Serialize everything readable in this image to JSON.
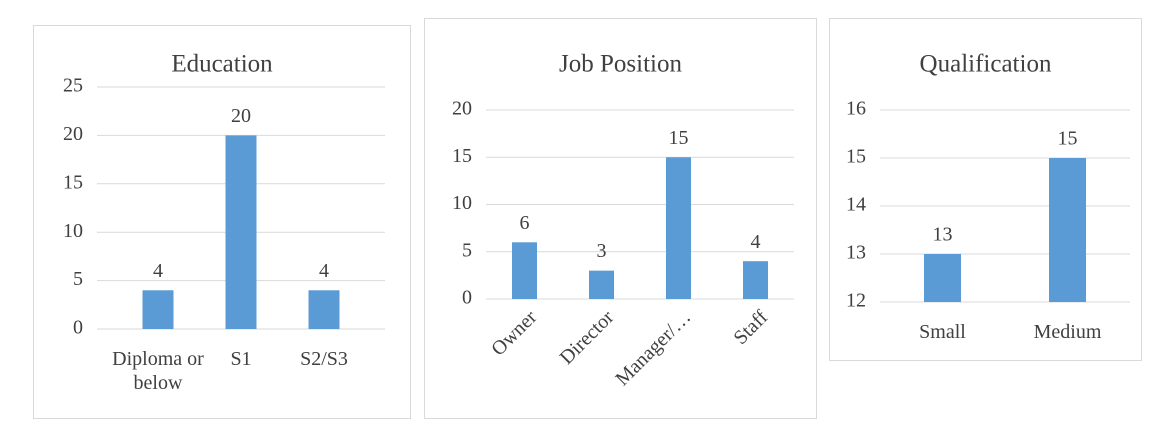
{
  "chart_data": [
    {
      "type": "bar",
      "title": "Education",
      "categories": [
        "Diploma or below",
        "S1",
        "S2/S3"
      ],
      "values": [
        4,
        20,
        4
      ],
      "color": "#5b9bd5",
      "ylim": [
        0,
        25
      ],
      "yticks": [
        0,
        5,
        10,
        15,
        20,
        25
      ],
      "grid": true,
      "data_labels": true
    },
    {
      "type": "bar",
      "title": "Job Position",
      "categories": [
        "Owner",
        "Director",
        "Manager/…",
        "Staff"
      ],
      "values": [
        6,
        3,
        15,
        4
      ],
      "color": "#5b9bd5",
      "ylim": [
        0,
        20
      ],
      "yticks": [
        0,
        5,
        10,
        15,
        20
      ],
      "grid": true,
      "data_labels": true
    },
    {
      "type": "bar",
      "title": "Qualification",
      "categories": [
        "Small",
        "Medium"
      ],
      "values": [
        13,
        15
      ],
      "color": "#5b9bd5",
      "ylim": [
        12,
        16
      ],
      "yticks": [
        12,
        13,
        14,
        15,
        16
      ],
      "grid": true,
      "data_labels": true
    }
  ]
}
